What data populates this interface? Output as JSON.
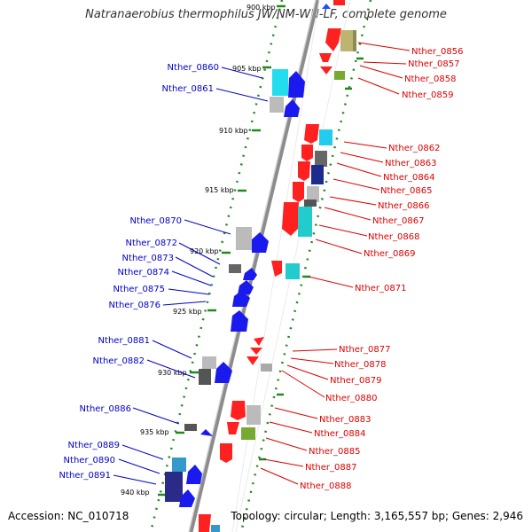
{
  "header": {
    "title": "Natranaerobius thermophilus JW/NM-WN-LF, complete genome"
  },
  "footer": {
    "accession": "Accession: NC_010718",
    "summary": "Topology: circular; Length: 3,165,557 bp; Genes: 2,946"
  },
  "map": {
    "left_label_color": "#0000cc",
    "right_label_color": "#dd0000",
    "backbone_color": "#8c8c8c",
    "dot_color": "#228822",
    "ticks": [
      "900 kbp",
      "905 kbp",
      "910 kbp",
      "915 kbp",
      "920 kbp",
      "925 kbp",
      "930 kbp",
      "935 kbp",
      "940 kbp"
    ],
    "left_genes": [
      "Nther_0860",
      "Nther_0861",
      "Nther_0870",
      "Nther_0872",
      "Nther_0873",
      "Nther_0874",
      "Nther_0875",
      "Nther_0876",
      "Nther_0881",
      "Nther_0882",
      "Nther_0886",
      "Nther_0889",
      "Nther_0890",
      "Nther_0891"
    ],
    "right_genes": [
      "Nther_0856",
      "Nther_0857",
      "Nther_0858",
      "Nther_0859",
      "Nther_0862",
      "Nther_0863",
      "Nther_0864",
      "Nther_0865",
      "Nther_0866",
      "Nther_0867",
      "Nther_0868",
      "Nther_0869",
      "Nther_0871",
      "Nther_0877",
      "Nther_0878",
      "Nther_0879",
      "Nther_0880",
      "Nther_0883",
      "Nther_0884",
      "Nther_0885",
      "Nther_0887",
      "Nther_0888"
    ]
  }
}
